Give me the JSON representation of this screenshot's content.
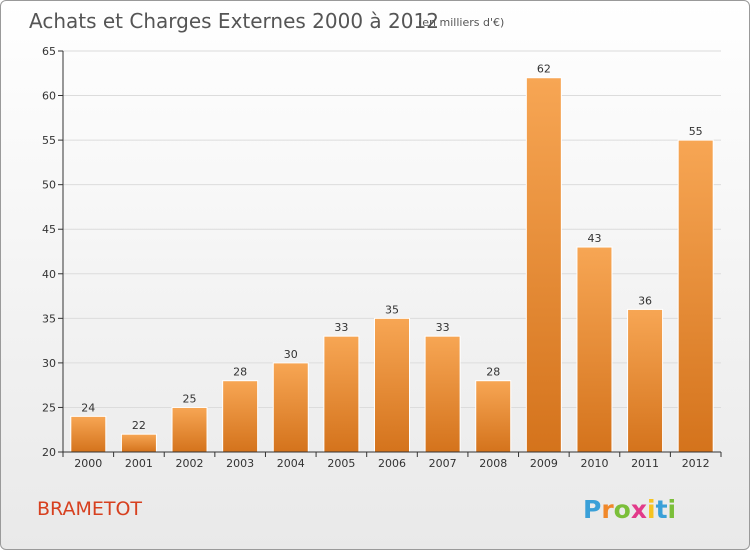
{
  "header": {
    "title": "Achats et Charges Externes 2000 à 2012",
    "subtitle": "(en milliers d'€)"
  },
  "commune": "BRAMETOT",
  "brand": {
    "name": "Proxiti",
    "letters": [
      "P",
      "r",
      "o",
      "x",
      "i",
      "t",
      "i"
    ],
    "colors": [
      "#3aa0d8",
      "#f0882a",
      "#7bbf3a",
      "#e23a8a",
      "#f6c320",
      "#3aa0d8",
      "#7bbf3a"
    ]
  },
  "colors": {
    "bar_top": "#f7a654",
    "bar_bottom": "#d4731c",
    "bar_border": "#ffffff",
    "axis": "#333333",
    "grid": "#dcdcdc"
  },
  "chart_data": {
    "type": "bar",
    "title": "Achats et Charges Externes 2000 à 2012",
    "subtitle": "(en milliers d'€)",
    "xlabel": "",
    "ylabel": "",
    "categories": [
      "2000",
      "2001",
      "2002",
      "2003",
      "2004",
      "2005",
      "2006",
      "2007",
      "2008",
      "2009",
      "2010",
      "2011",
      "2012"
    ],
    "values": [
      24,
      22,
      25,
      28,
      30,
      33,
      35,
      33,
      28,
      62,
      43,
      36,
      55
    ],
    "data_labels": [
      "24",
      "22",
      "25",
      "28",
      "30",
      "33",
      "35",
      "33",
      "28",
      "62",
      "43",
      "36",
      "55"
    ],
    "ylim": [
      20,
      65
    ],
    "yticks": [
      20,
      25,
      30,
      35,
      40,
      45,
      50,
      55,
      60,
      65
    ],
    "ytick_labels": [
      "20",
      "25",
      "30",
      "35",
      "40",
      "45",
      "50",
      "55",
      "60",
      "65"
    ],
    "grid": true,
    "legend": "none"
  }
}
